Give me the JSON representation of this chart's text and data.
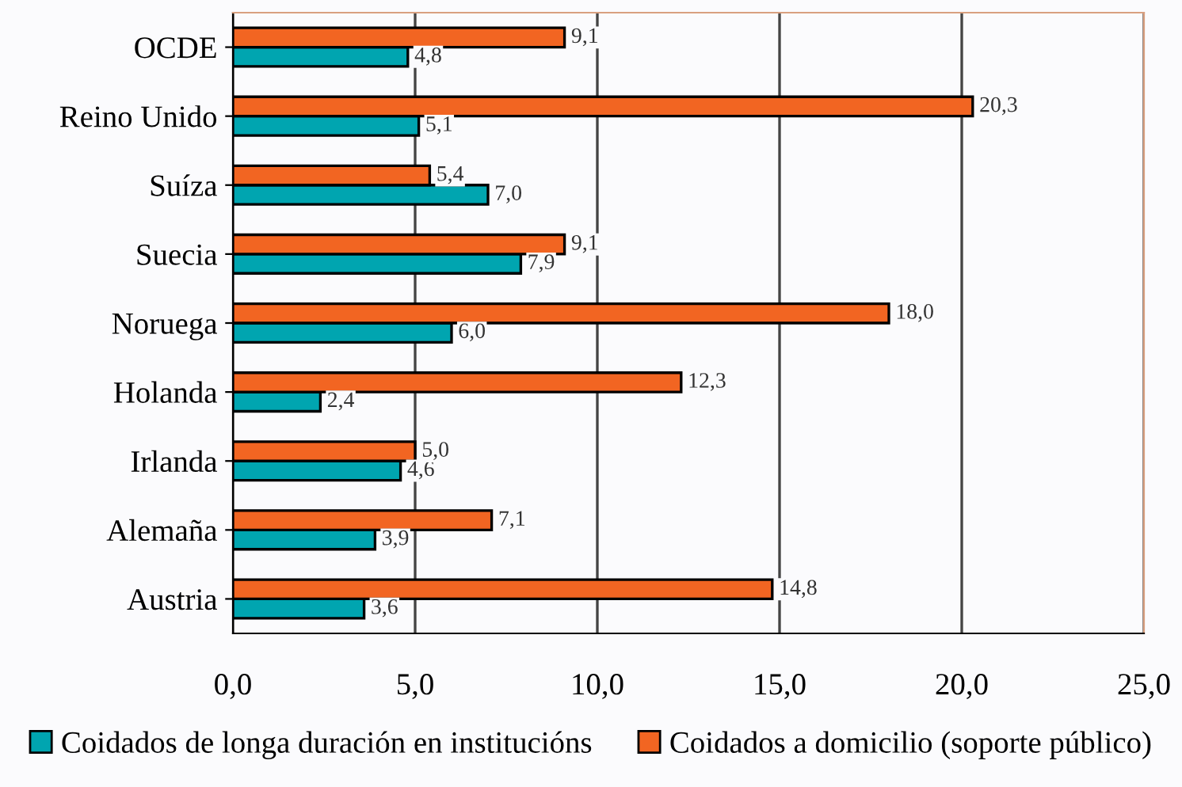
{
  "chart_data": {
    "type": "bar",
    "orientation": "horizontal",
    "categories": [
      "OCDE",
      "Reino Unido",
      "Suíza",
      "Suecia",
      "Noruega",
      "Holanda",
      "Irlanda",
      "Alemaña",
      "Austria"
    ],
    "series": [
      {
        "name": "Coidados de longa duración en institucións",
        "color": "#00a5b0",
        "values": [
          4.8,
          5.1,
          7.0,
          7.9,
          6.0,
          2.4,
          4.6,
          3.9,
          3.6
        ],
        "value_labels": [
          "4,8",
          "5,1",
          "7,0",
          "7,9",
          "6,0",
          "2,4",
          "4,6",
          "3,9",
          "3,6"
        ]
      },
      {
        "name": "Coidados a domicilio (soporte público)",
        "color": "#f26522",
        "values": [
          9.1,
          20.3,
          5.4,
          9.1,
          18.0,
          12.3,
          5.0,
          7.1,
          14.8
        ],
        "value_labels": [
          "9,1",
          "20,3",
          "5,4",
          "9,1",
          "18,0",
          "12,3",
          "5,0",
          "7,1",
          "14,8"
        ]
      }
    ],
    "xlim": [
      0,
      25
    ],
    "xticks": [
      {
        "value": 0,
        "label": "0,0"
      },
      {
        "value": 5,
        "label": "5,0"
      },
      {
        "value": 10,
        "label": "10,0"
      },
      {
        "value": 15,
        "label": "15,0"
      },
      {
        "value": 20,
        "label": "20,0"
      },
      {
        "value": 25,
        "label": "25,0"
      }
    ],
    "grid": "x",
    "legend": "bottom"
  }
}
